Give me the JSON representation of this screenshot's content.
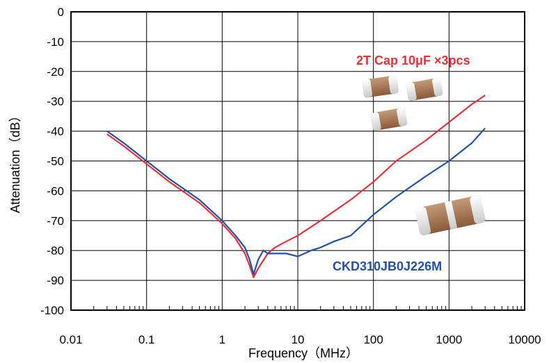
{
  "chart_data": {
    "type": "line",
    "xlabel": "Frequency（MHz）",
    "ylabel": "Attenuation（dB）",
    "x_scale": "log",
    "xlim": [
      0.01,
      10000
    ],
    "ylim": [
      -100,
      0
    ],
    "grid": true,
    "x_tick_labels": [
      "0.01",
      "0.1",
      "1",
      "10",
      "100",
      "1000",
      "10000"
    ],
    "y_tick_labels": [
      "0",
      "-10",
      "-20",
      "-30",
      "-40",
      "-50",
      "-60",
      "-70",
      "-80",
      "-90",
      "-100"
    ],
    "series": [
      {
        "name": "2T Cap 10μF ×3pcs",
        "color": "#e8313a",
        "x": [
          0.03,
          0.05,
          0.1,
          0.2,
          0.5,
          1,
          1.5,
          2,
          2.3,
          2.6,
          3,
          4,
          5,
          7,
          10,
          20,
          50,
          100,
          200,
          500,
          1000,
          2000,
          3000
        ],
        "y": [
          -41,
          -45,
          -51,
          -57,
          -64,
          -71,
          -76,
          -81,
          -85,
          -89,
          -86,
          -81,
          -79,
          -77,
          -75,
          -70,
          -63,
          -57,
          -50,
          -43,
          -37,
          -31,
          -28
        ]
      },
      {
        "name": "CKD310JB0J226M",
        "color": "#2451a8",
        "x": [
          0.03,
          0.05,
          0.1,
          0.2,
          0.5,
          1,
          1.5,
          2,
          2.3,
          2.6,
          3,
          3.5,
          4,
          5,
          7,
          10,
          15,
          20,
          30,
          50,
          100,
          200,
          500,
          1000,
          2000,
          3000
        ],
        "y": [
          -40,
          -44,
          -50,
          -56,
          -63,
          -70,
          -75,
          -79,
          -83,
          -88,
          -83,
          -80,
          -81,
          -81,
          -81,
          -82,
          -80,
          -79,
          -77,
          -75,
          -68,
          -62,
          -55,
          -50,
          -44,
          -39
        ]
      }
    ]
  }
}
